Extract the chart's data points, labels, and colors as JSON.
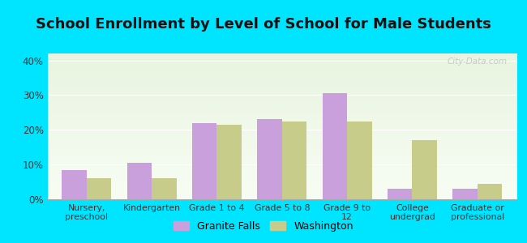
{
  "title": "School Enrollment by Level of School for Male Students",
  "categories": [
    "Nursery,\npreschool",
    "Kindergarten",
    "Grade 1 to 4",
    "Grade 5 to 8",
    "Grade 9 to\n12",
    "College\nundergrad",
    "Graduate or\nprofessional"
  ],
  "granite_falls": [
    8.5,
    10.5,
    22.0,
    23.0,
    30.5,
    3.0,
    3.0
  ],
  "washington": [
    6.0,
    6.0,
    21.5,
    22.5,
    22.5,
    17.0,
    4.5
  ],
  "granite_color": "#c9a0dc",
  "washington_color": "#c8cc8a",
  "background_outer": "#00e5ff",
  "ylim": [
    0,
    42
  ],
  "yticks": [
    0,
    10,
    20,
    30,
    40
  ],
  "ytick_labels": [
    "0%",
    "10%",
    "20%",
    "30%",
    "40%"
  ],
  "legend_granite": "Granite Falls",
  "legend_washington": "Washington",
  "title_fontsize": 13,
  "bar_width": 0.38,
  "watermark": "City-Data.com"
}
